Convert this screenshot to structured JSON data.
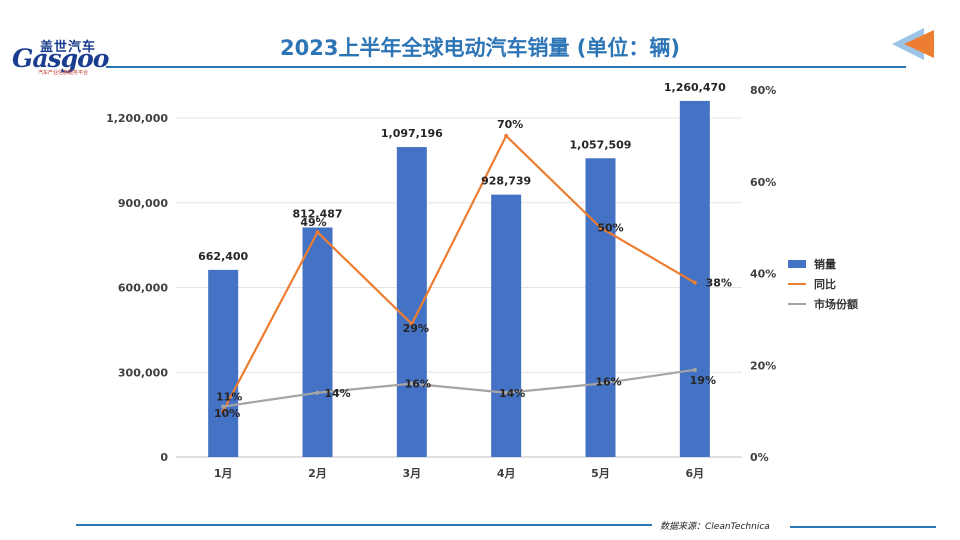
{
  "logo": {
    "cn": "盖世汽车",
    "en": "Gasgoo",
    "sub": "汽车产业信息服务平台"
  },
  "title": "2023上半年全球电动汽车销量 (单位：辆)",
  "source": "数据来源：CleanTechnica",
  "colors": {
    "sales": "#4472c4",
    "yoy": "#ed7d31",
    "share": "#a5a5a5",
    "title": "#2e75b6"
  },
  "chart_data": {
    "type": "bar",
    "categories": [
      "1月",
      "2月",
      "3月",
      "4月",
      "5月",
      "6月"
    ],
    "series": [
      {
        "name": "销量",
        "type": "bar",
        "axis": "left",
        "values": [
          662400,
          812487,
          1097196,
          928739,
          1057509,
          1260470
        ],
        "labels": [
          "662,400",
          "812,487",
          "1,097,196",
          "928,739",
          "1,057,509",
          "1,260,470"
        ]
      },
      {
        "name": "同比",
        "type": "line",
        "axis": "right",
        "values": [
          10,
          49,
          29,
          70,
          50,
          38
        ],
        "labels": [
          "10%",
          "49%",
          "29%",
          "70%",
          "50%",
          "38%"
        ]
      },
      {
        "name": "市场份额",
        "type": "line",
        "axis": "right",
        "values": [
          11,
          14,
          16,
          14,
          16,
          19
        ],
        "labels": [
          "11%",
          "14%",
          "16%",
          "14%",
          "16%",
          "19%"
        ]
      }
    ],
    "y_left": {
      "range": [
        0,
        1200000
      ],
      "ticks": [
        0,
        300000,
        600000,
        900000,
        1200000
      ],
      "tick_labels": [
        "0",
        "300,000",
        "600,000",
        "900,000",
        "1,200,000"
      ]
    },
    "y_right": {
      "range": [
        0,
        80
      ],
      "ticks": [
        0,
        20,
        40,
        60,
        80
      ],
      "tick_labels": [
        "0%",
        "20%",
        "40%",
        "60%",
        "80%"
      ]
    },
    "grid": true,
    "legend": "right"
  }
}
